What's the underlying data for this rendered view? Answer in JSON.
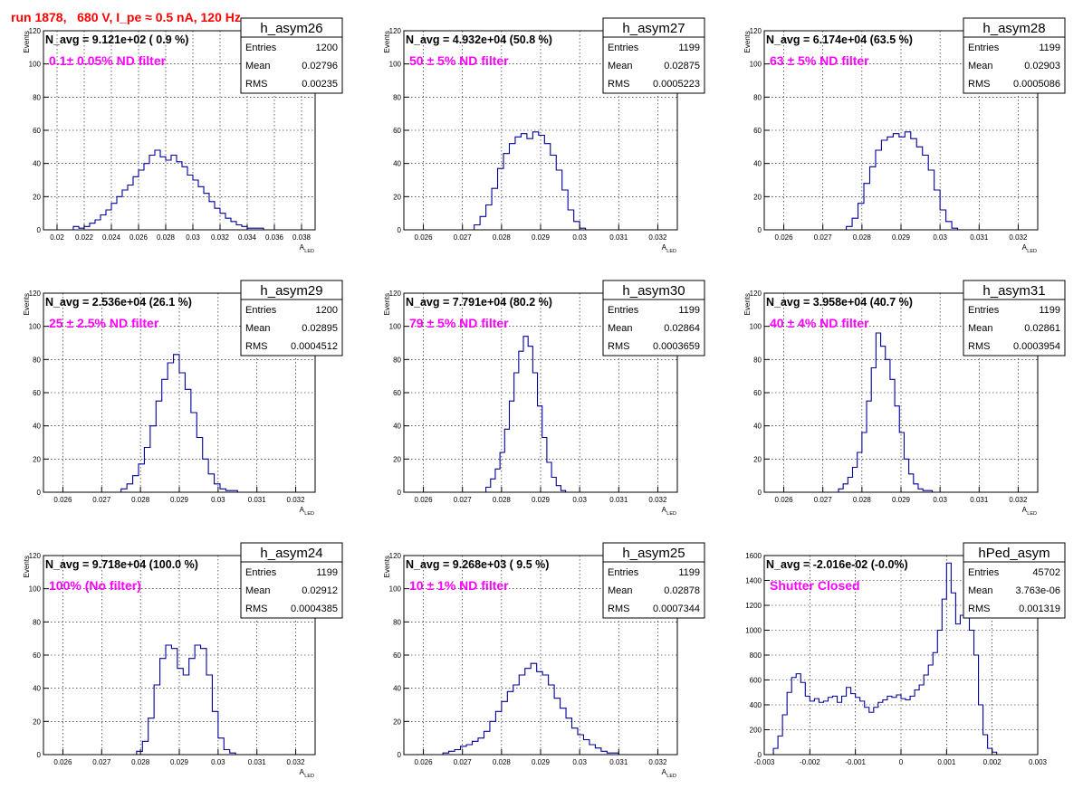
{
  "title": "run 1878,   680 V, I_pe ≈ 0.5 nA, 120 Hz",
  "chart_data": [
    {
      "type": "histogram",
      "name": "h_asym26",
      "navg": "N_avg = 9.121e+02 ( 0.9 %)",
      "filter": "0.1± 0.05% ND filter",
      "stats": {
        "entries": "1200",
        "mean": "0.02796",
        "rms": "0.00235"
      },
      "stat_labels": [
        "Entries",
        "Mean",
        "RMS"
      ],
      "ylabel": "Events",
      "xlabel": "A",
      "xlabel_sub": "LED",
      "xlim": [
        0.019,
        0.039
      ],
      "ylim": [
        0,
        120
      ],
      "xticks": [
        0.02,
        0.022,
        0.024,
        0.026,
        0.028,
        0.03,
        0.032,
        0.034,
        0.036,
        0.038
      ],
      "xtick_labels": [
        "0.02",
        "0.022",
        "0.024",
        "0.026",
        "0.028",
        "0.03",
        "0.032",
        "0.034",
        "0.036",
        "0.038"
      ],
      "yticks": [
        0,
        20,
        40,
        60,
        80,
        100,
        120
      ],
      "ytick_labels": [
        "0",
        "20",
        "40",
        "60",
        "80",
        "100",
        "120"
      ],
      "bins": {
        "edges": [
          0.0212,
          0.0216,
          0.022,
          0.0224,
          0.0228,
          0.0232,
          0.0236,
          0.024,
          0.0244,
          0.0248,
          0.0252,
          0.0256,
          0.026,
          0.0264,
          0.0268,
          0.0272,
          0.0276,
          0.028,
          0.0284,
          0.0288,
          0.0292,
          0.0296,
          0.03,
          0.0304,
          0.0308,
          0.0312,
          0.0316,
          0.032,
          0.0324,
          0.0328,
          0.0332,
          0.0336,
          0.034,
          0.0344,
          0.0348,
          0.0352
        ],
        "counts": [
          2,
          1,
          2,
          4,
          6,
          9,
          12,
          16,
          20,
          24,
          27,
          32,
          36,
          40,
          45,
          48,
          44,
          42,
          45,
          41,
          38,
          33,
          30,
          26,
          22,
          17,
          13,
          10,
          7,
          5,
          3,
          2,
          1,
          1,
          1
        ]
      }
    },
    {
      "type": "histogram",
      "name": "h_asym27",
      "navg": "N_avg = 4.932e+04 (50.8 %)",
      "filter": "50 ± 5% ND filter",
      "stats": {
        "entries": "1199",
        "mean": "0.02875",
        "rms": "0.0005223"
      },
      "stat_labels": [
        "Entries",
        "Mean",
        "RMS"
      ],
      "ylabel": "Events",
      "xlabel": "A",
      "xlabel_sub": "LED",
      "xlim": [
        0.0255,
        0.0325
      ],
      "ylim": [
        0,
        120
      ],
      "xticks": [
        0.026,
        0.027,
        0.028,
        0.029,
        0.03,
        0.031,
        0.032
      ],
      "xtick_labels": [
        "0.026",
        "0.027",
        "0.028",
        "0.029",
        "0.03",
        "0.031",
        "0.032"
      ],
      "yticks": [
        0,
        20,
        40,
        60,
        80,
        100,
        120
      ],
      "ytick_labels": [
        "0",
        "20",
        "40",
        "60",
        "80",
        "100",
        "120"
      ],
      "bins": {
        "edges": [
          0.0273,
          0.02745,
          0.0276,
          0.02775,
          0.0279,
          0.02805,
          0.0282,
          0.02835,
          0.0285,
          0.02865,
          0.0288,
          0.02895,
          0.0291,
          0.02925,
          0.0294,
          0.02955,
          0.0297,
          0.02985,
          0.03,
          0.03015
        ],
        "counts": [
          3,
          8,
          15,
          25,
          37,
          46,
          52,
          56,
          58,
          55,
          59,
          57,
          52,
          45,
          36,
          24,
          12,
          5,
          1
        ]
      }
    },
    {
      "type": "histogram",
      "name": "h_asym28",
      "navg": "N_avg = 6.174e+04 (63.5 %)",
      "filter": "63 ± 5% ND filter",
      "stats": {
        "entries": "1199",
        "mean": "0.02903",
        "rms": "0.0005086"
      },
      "stat_labels": [
        "Entries",
        "Mean",
        "RMS"
      ],
      "ylabel": "Events",
      "xlabel": "A",
      "xlabel_sub": "LED",
      "xlim": [
        0.0255,
        0.0325
      ],
      "ylim": [
        0,
        120
      ],
      "xticks": [
        0.026,
        0.027,
        0.028,
        0.029,
        0.03,
        0.031,
        0.032
      ],
      "xtick_labels": [
        "0.026",
        "0.027",
        "0.028",
        "0.029",
        "0.03",
        "0.031",
        "0.032"
      ],
      "yticks": [
        0,
        20,
        40,
        60,
        80,
        100,
        120
      ],
      "ytick_labels": [
        "0",
        "20",
        "40",
        "60",
        "80",
        "100",
        "120"
      ],
      "bins": {
        "edges": [
          0.0276,
          0.02775,
          0.0279,
          0.02805,
          0.0282,
          0.02835,
          0.0285,
          0.02865,
          0.0288,
          0.02895,
          0.0291,
          0.02925,
          0.0294,
          0.02955,
          0.0297,
          0.02985,
          0.03,
          0.03015,
          0.0303,
          0.03045
        ],
        "counts": [
          2,
          7,
          16,
          28,
          38,
          48,
          54,
          56,
          58,
          56,
          59,
          55,
          50,
          45,
          36,
          24,
          12,
          5,
          1
        ]
      }
    },
    {
      "type": "histogram",
      "name": "h_asym29",
      "navg": "N_avg = 2.536e+04 (26.1 %)",
      "filter": "25 ± 2.5% ND filter",
      "stats": {
        "entries": "1200",
        "mean": "0.02895",
        "rms": "0.0004512"
      },
      "stat_labels": [
        "Entries",
        "Mean",
        "RMS"
      ],
      "ylabel": "Events",
      "xlabel": "A",
      "xlabel_sub": "LED",
      "xlim": [
        0.0255,
        0.0325
      ],
      "ylim": [
        0,
        120
      ],
      "xticks": [
        0.026,
        0.027,
        0.028,
        0.029,
        0.03,
        0.031,
        0.032
      ],
      "xtick_labels": [
        "0.026",
        "0.027",
        "0.028",
        "0.029",
        "0.03",
        "0.031",
        "0.032"
      ],
      "yticks": [
        0,
        20,
        40,
        60,
        80,
        100,
        120
      ],
      "ytick_labels": [
        "0",
        "20",
        "40",
        "60",
        "80",
        "100",
        "120"
      ],
      "bins": {
        "edges": [
          0.0275,
          0.02765,
          0.0278,
          0.02795,
          0.0281,
          0.02825,
          0.0284,
          0.02855,
          0.0287,
          0.02885,
          0.029,
          0.02915,
          0.0293,
          0.02945,
          0.0296,
          0.02975,
          0.0299,
          0.03005,
          0.0302,
          0.03035,
          0.0305
        ],
        "counts": [
          2,
          5,
          10,
          17,
          27,
          40,
          55,
          68,
          78,
          83,
          72,
          62,
          48,
          33,
          20,
          11,
          5,
          2,
          1,
          1
        ]
      }
    },
    {
      "type": "histogram",
      "name": "h_asym30",
      "navg": "N_avg = 7.791e+04 (80.2 %)",
      "filter": "79 ± 5% ND filter",
      "stats": {
        "entries": "1199",
        "mean": "0.02864",
        "rms": "0.0003659"
      },
      "stat_labels": [
        "Entries",
        "Mean",
        "RMS"
      ],
      "ylabel": "Events",
      "xlabel": "A",
      "xlabel_sub": "LED",
      "xlim": [
        0.0255,
        0.0325
      ],
      "ylim": [
        0,
        120
      ],
      "xticks": [
        0.026,
        0.027,
        0.028,
        0.029,
        0.03,
        0.031,
        0.032
      ],
      "xtick_labels": [
        "0.026",
        "0.027",
        "0.028",
        "0.029",
        "0.03",
        "0.031",
        "0.032"
      ],
      "yticks": [
        0,
        20,
        40,
        60,
        80,
        100,
        120
      ],
      "ytick_labels": [
        "0",
        "20",
        "40",
        "60",
        "80",
        "100",
        "120"
      ],
      "bins": {
        "edges": [
          0.0276,
          0.02772,
          0.02784,
          0.02796,
          0.02808,
          0.0282,
          0.02832,
          0.02844,
          0.02856,
          0.02868,
          0.0288,
          0.02892,
          0.02904,
          0.02916,
          0.02928,
          0.0294,
          0.02952,
          0.02964
        ],
        "counts": [
          3,
          8,
          14,
          24,
          38,
          55,
          72,
          85,
          94,
          88,
          72,
          52,
          33,
          18,
          9,
          4,
          1
        ]
      }
    },
    {
      "type": "histogram",
      "name": "h_asym31",
      "navg": "N_avg = 3.958e+04 (40.7 %)",
      "filter": "40 ± 4% ND filter",
      "stats": {
        "entries": "1199",
        "mean": "0.02861",
        "rms": "0.0003954"
      },
      "stat_labels": [
        "Entries",
        "Mean",
        "RMS"
      ],
      "ylabel": "Events",
      "xlabel": "A",
      "xlabel_sub": "LED",
      "xlim": [
        0.0255,
        0.0325
      ],
      "ylim": [
        0,
        120
      ],
      "xticks": [
        0.026,
        0.027,
        0.028,
        0.029,
        0.03,
        0.031,
        0.032
      ],
      "xtick_labels": [
        "0.026",
        "0.027",
        "0.028",
        "0.029",
        "0.03",
        "0.031",
        "0.032"
      ],
      "yticks": [
        0,
        20,
        40,
        60,
        80,
        100,
        120
      ],
      "ytick_labels": [
        "0",
        "20",
        "40",
        "60",
        "80",
        "100",
        "120"
      ],
      "bins": {
        "edges": [
          0.0274,
          0.02752,
          0.02764,
          0.02776,
          0.02788,
          0.028,
          0.02812,
          0.02824,
          0.02836,
          0.02848,
          0.0286,
          0.02872,
          0.02884,
          0.02896,
          0.02908,
          0.0292,
          0.02932,
          0.02944,
          0.02956,
          0.02968,
          0.0298
        ],
        "counts": [
          2,
          5,
          9,
          15,
          24,
          36,
          55,
          75,
          96,
          88,
          80,
          68,
          52,
          36,
          20,
          11,
          5,
          2,
          1,
          1
        ]
      }
    },
    {
      "type": "histogram",
      "name": "h_asym24",
      "navg": "N_avg = 9.718e+04 (100.0 %)",
      "filter": "100% (No filter)",
      "stats": {
        "entries": "1199",
        "mean": "0.02912",
        "rms": "0.0004385"
      },
      "stat_labels": [
        "Entries",
        "Mean",
        "RMS"
      ],
      "ylabel": "Events",
      "xlabel": "A",
      "xlabel_sub": "LED",
      "xlim": [
        0.0255,
        0.0325
      ],
      "ylim": [
        0,
        120
      ],
      "xticks": [
        0.026,
        0.027,
        0.028,
        0.029,
        0.03,
        0.031,
        0.032
      ],
      "xtick_labels": [
        "0.026",
        "0.027",
        "0.028",
        "0.029",
        "0.03",
        "0.031",
        "0.032"
      ],
      "yticks": [
        0,
        20,
        40,
        60,
        80,
        100,
        120
      ],
      "ytick_labels": [
        "0",
        "20",
        "40",
        "60",
        "80",
        "100",
        "120"
      ],
      "bins": {
        "edges": [
          0.0279,
          0.02805,
          0.0282,
          0.02835,
          0.0285,
          0.02865,
          0.0288,
          0.02895,
          0.0291,
          0.02925,
          0.0294,
          0.02955,
          0.0297,
          0.02985,
          0.03,
          0.03015,
          0.0303,
          0.03045
        ],
        "counts": [
          2,
          8,
          22,
          42,
          58,
          66,
          64,
          52,
          48,
          58,
          66,
          64,
          48,
          26,
          10,
          3,
          1
        ]
      }
    },
    {
      "type": "histogram",
      "name": "h_asym25",
      "navg": "N_avg = 9.268e+03 ( 9.5 %)",
      "filter": "10 ± 1% ND filter",
      "stats": {
        "entries": "1199",
        "mean": "0.02878",
        "rms": "0.0007344"
      },
      "stat_labels": [
        "Entries",
        "Mean",
        "RMS"
      ],
      "ylabel": "Events",
      "xlabel": "A",
      "xlabel_sub": "LED",
      "xlim": [
        0.0255,
        0.0325
      ],
      "ylim": [
        0,
        120
      ],
      "xticks": [
        0.026,
        0.027,
        0.028,
        0.029,
        0.03,
        0.031,
        0.032
      ],
      "xtick_labels": [
        "0.026",
        "0.027",
        "0.028",
        "0.029",
        "0.03",
        "0.031",
        "0.032"
      ],
      "yticks": [
        0,
        20,
        40,
        60,
        80,
        100,
        120
      ],
      "ytick_labels": [
        "0",
        "20",
        "40",
        "60",
        "80",
        "100",
        "120"
      ],
      "bins": {
        "edges": [
          0.0265,
          0.02665,
          0.0268,
          0.02695,
          0.0271,
          0.02725,
          0.0274,
          0.02755,
          0.0277,
          0.02785,
          0.028,
          0.02815,
          0.0283,
          0.02845,
          0.0286,
          0.02875,
          0.0289,
          0.02905,
          0.0292,
          0.02935,
          0.0295,
          0.02965,
          0.0298,
          0.02995,
          0.0301,
          0.03025,
          0.0304,
          0.03055,
          0.0307,
          0.03085,
          0.031
        ],
        "counts": [
          1,
          2,
          3,
          5,
          6,
          8,
          10,
          14,
          20,
          26,
          32,
          38,
          42,
          48,
          52,
          55,
          50,
          48,
          42,
          34,
          28,
          22,
          16,
          12,
          9,
          6,
          4,
          2,
          1,
          1
        ]
      }
    },
    {
      "type": "histogram",
      "name": "hPed_asym",
      "navg": "N_avg = -2.016e-02 (-0.0%)",
      "filter": "Shutter Closed",
      "stats": {
        "entries": "45702",
        "mean": "3.763e-06",
        "rms": "0.001319"
      },
      "stat_labels": [
        "Entries",
        "Mean",
        "RMS"
      ],
      "ylabel": "",
      "xlabel": "",
      "xlabel_sub": "",
      "xlim": [
        -0.003,
        0.003
      ],
      "ylim": [
        0,
        1600
      ],
      "xticks": [
        -0.003,
        -0.002,
        -0.001,
        0,
        0.001,
        0.002,
        0.003
      ],
      "xtick_labels": [
        "-0.003",
        "-0.002",
        "-0.001",
        "0",
        "0.001",
        "0.002",
        "0.003"
      ],
      "yticks": [
        0,
        200,
        400,
        600,
        800,
        1000,
        1200,
        1400,
        1600
      ],
      "ytick_labels": [
        "0",
        "200",
        "400",
        "600",
        "800",
        "1000",
        "1200",
        "1400",
        "1600"
      ],
      "bins": {
        "edges": [
          -0.0028,
          -0.0027,
          -0.0026,
          -0.0025,
          -0.0024,
          -0.0023,
          -0.0022,
          -0.0021,
          -0.002,
          -0.0019,
          -0.0018,
          -0.0017,
          -0.0016,
          -0.0015,
          -0.0014,
          -0.0013,
          -0.0012,
          -0.0011,
          -0.001,
          -0.0009,
          -0.0008,
          -0.0007,
          -0.0006,
          -0.0005,
          -0.0004,
          -0.0003,
          -0.0002,
          -0.0001,
          0,
          0.0001,
          0.0002,
          0.0003,
          0.0004,
          0.0005,
          0.0006,
          0.0007,
          0.0008,
          0.0009,
          0.001,
          0.0011,
          0.0012,
          0.0013,
          0.0014,
          0.0015,
          0.0016,
          0.0017,
          0.0018,
          0.0019,
          0.002,
          0.0021
        ],
        "counts": [
          50,
          150,
          320,
          500,
          620,
          650,
          580,
          470,
          430,
          450,
          420,
          430,
          460,
          470,
          420,
          470,
          540,
          490,
          460,
          430,
          380,
          340,
          380,
          420,
          440,
          470,
          460,
          480,
          450,
          440,
          470,
          520,
          560,
          640,
          720,
          820,
          1000,
          1250,
          1540,
          1300,
          1050,
          1120,
          1180,
          1000,
          800,
          400,
          160,
          50,
          20
        ]
      }
    }
  ]
}
